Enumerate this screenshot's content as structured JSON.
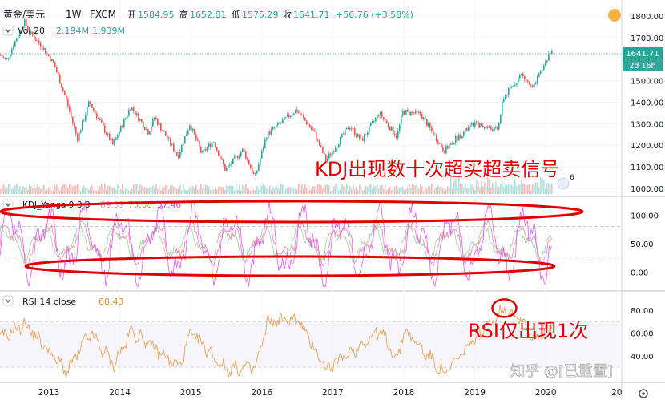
{
  "header": {
    "symbol": "黄金/美元",
    "interval": "1W",
    "exchange": "FXCM",
    "open_label": "开",
    "open_value": "1584.95",
    "high_label": "高",
    "high_value": "1652.81",
    "low_label": "低",
    "low_value": "1575.29",
    "close_label": "收",
    "close_value": "1641.71",
    "change": "+56.76 (+3.58%)"
  },
  "volume_legend": {
    "name": "Vol 20",
    "value1": "2.194M",
    "value2": "1.939M"
  },
  "kdj_legend": {
    "name": "KDJ_Yanga 9 3 3",
    "k": "69.39",
    "d": "75.08",
    "j": "57.46"
  },
  "rsi_legend": {
    "name": "RSI 14 close",
    "value": "68.43"
  },
  "price_pill": {
    "price": "1641.71",
    "countdown": "2d 16h"
  },
  "annotations": {
    "kdj_note": "KDJ出现数十次超买超卖信号",
    "rsi_note": "RSI仅出现1次"
  },
  "watermark": "知乎 @[已重置]",
  "colors": {
    "up": "#26a69a",
    "down": "#ef5350",
    "k_line": "#f48fb1",
    "d_line": "#a5d6a7",
    "j_line": "#e040fb",
    "rsi_line": "#f0a050",
    "annotation": "#e00000",
    "price_pill": "#26a69a"
  },
  "chart_data": {
    "type": "candlestick",
    "x_ticks": [
      "2013",
      "2014",
      "2015",
      "2016",
      "2017",
      "2018",
      "2019",
      "2020",
      "20"
    ],
    "price_axis": {
      "ticks": [
        "1800.00",
        "1700.00",
        "1600.00",
        "1500.00",
        "1400.00",
        "1300.00",
        "1200.00",
        "1100.00",
        "1000.00"
      ],
      "ylim": [
        970,
        1845
      ]
    },
    "kdj_axis": {
      "ticks": [
        "100.00",
        "50.00",
        "0.00"
      ],
      "ylim": [
        -30,
        130
      ]
    },
    "rsi_axis": {
      "ticks": [
        "80.00",
        "60.00",
        "40.00"
      ],
      "ylim": [
        18,
        95
      ]
    },
    "price_path": [
      [
        "2012-03",
        1660
      ],
      [
        "2012-06",
        1595
      ],
      [
        "2012-09",
        1775
      ],
      [
        "2012-10",
        1720
      ],
      [
        "2012-12",
        1660
      ],
      [
        "2013-02",
        1580
      ],
      [
        "2013-04",
        1420
      ],
      [
        "2013-06",
        1230
      ],
      [
        "2013-08",
        1400
      ],
      [
        "2013-10",
        1300
      ],
      [
        "2013-12",
        1200
      ],
      [
        "2014-03",
        1380
      ],
      [
        "2014-06",
        1260
      ],
      [
        "2014-07",
        1330
      ],
      [
        "2014-11",
        1150
      ],
      [
        "2015-01",
        1300
      ],
      [
        "2015-03",
        1160
      ],
      [
        "2015-05",
        1220
      ],
      [
        "2015-07",
        1085
      ],
      [
        "2015-10",
        1180
      ],
      [
        "2015-12",
        1050
      ],
      [
        "2016-02",
        1250
      ],
      [
        "2016-07",
        1365
      ],
      [
        "2016-10",
        1260
      ],
      [
        "2016-12",
        1130
      ],
      [
        "2017-04",
        1290
      ],
      [
        "2017-06",
        1220
      ],
      [
        "2017-09",
        1350
      ],
      [
        "2017-12",
        1240
      ],
      [
        "2018-01",
        1355
      ],
      [
        "2018-04",
        1345
      ],
      [
        "2018-08",
        1175
      ],
      [
        "2018-10",
        1230
      ],
      [
        "2019-01",
        1300
      ],
      [
        "2019-05",
        1270
      ],
      [
        "2019-06",
        1420
      ],
      [
        "2019-09",
        1530
      ],
      [
        "2019-11",
        1460
      ],
      [
        "2020-01",
        1580
      ],
      [
        "2020-02",
        1642
      ]
    ],
    "rsi_path": [
      [
        "2012-03",
        50
      ],
      [
        "2012-09",
        68
      ],
      [
        "2013-04",
        26
      ],
      [
        "2013-08",
        60
      ],
      [
        "2013-12",
        32
      ],
      [
        "2014-03",
        62
      ],
      [
        "2014-11",
        30
      ],
      [
        "2015-01",
        60
      ],
      [
        "2015-07",
        28
      ],
      [
        "2015-12",
        30
      ],
      [
        "2016-02",
        70
      ],
      [
        "2016-07",
        72
      ],
      [
        "2016-12",
        28
      ],
      [
        "2017-09",
        62
      ],
      [
        "2017-12",
        36
      ],
      [
        "2018-01",
        63
      ],
      [
        "2018-08",
        24
      ],
      [
        "2019-01",
        55
      ],
      [
        "2019-06",
        82
      ],
      [
        "2019-09",
        72
      ],
      [
        "2019-11",
        55
      ],
      [
        "2020-02",
        68
      ]
    ],
    "kdj_range": {
      "K": [
        8,
        95
      ],
      "D": [
        12,
        90
      ],
      "J": [
        -25,
        125
      ]
    },
    "rsi_highlight": {
      "date": "2019-06",
      "value": 82
    }
  }
}
